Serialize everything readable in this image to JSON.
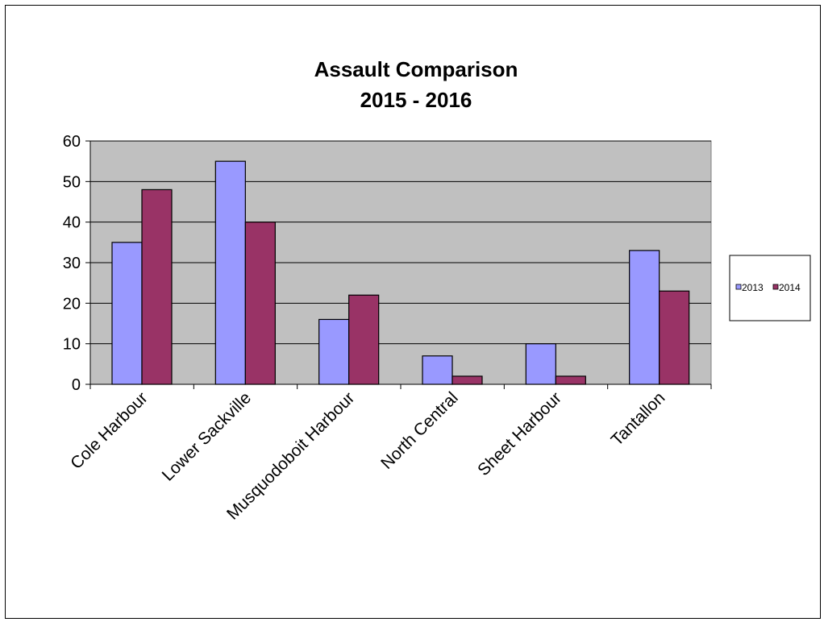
{
  "chart_data": {
    "type": "bar",
    "title": "Assault Comparison",
    "subtitle": "2015 - 2016",
    "categories": [
      "Cole Harbour",
      "Lower Sackville",
      "Musquodoboit Harbour",
      "North Central",
      "Sheet Harbour",
      "Tantallon"
    ],
    "series": [
      {
        "name": "2013",
        "color": "#9999ff",
        "values": [
          35,
          55,
          16,
          7,
          10,
          33
        ]
      },
      {
        "name": "2014",
        "color": "#993366",
        "values": [
          48,
          40,
          22,
          2,
          2,
          23
        ]
      }
    ],
    "ylim": [
      0,
      60
    ],
    "yticks": [
      0,
      10,
      20,
      30,
      40,
      50,
      60
    ],
    "xlabel": "",
    "ylabel": "",
    "grid": true,
    "plot_background": "#c0c0c0",
    "legend_position": "right"
  }
}
